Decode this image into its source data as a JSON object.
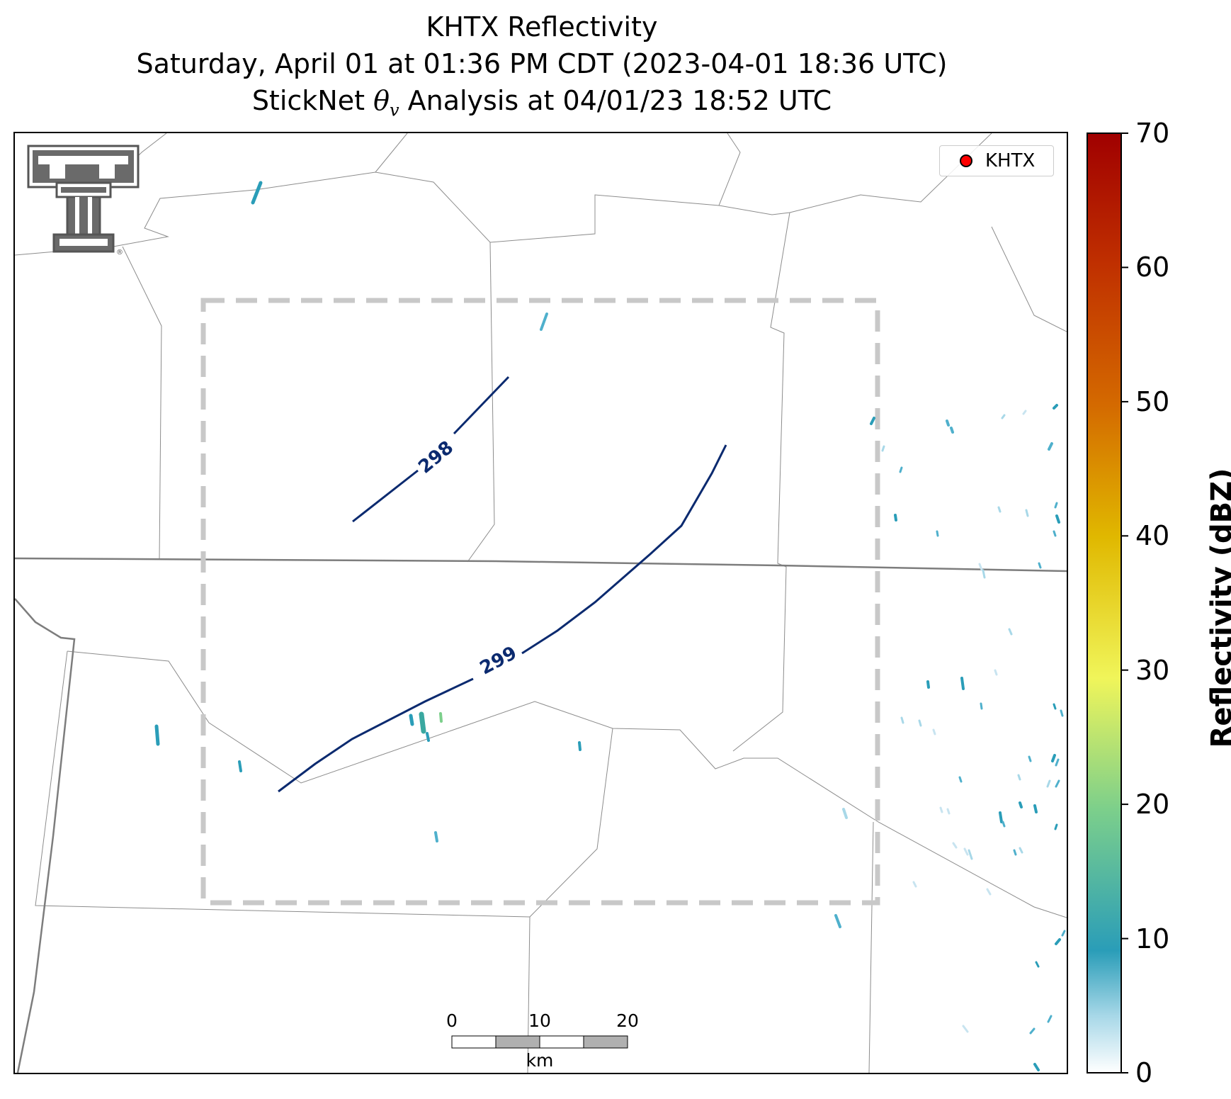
{
  "title": {
    "line1": "KHTX Reflectivity",
    "line2": "Saturday, April 01 at 01:36 PM CDT (2023-04-01 18:36 UTC)",
    "line3_prefix": "StickNet ",
    "line3_symbol": "θ",
    "line3_subscript": "v",
    "line3_suffix": " Analysis at 04/01/23 18:52 UTC"
  },
  "legend": {
    "label": "KHTX",
    "marker_color": "#ff0000"
  },
  "colorbar": {
    "label": "Reflectivity (dBZ)",
    "min": 0,
    "max": 70,
    "ticks": [
      "0",
      "10",
      "20",
      "30",
      "40",
      "50",
      "60",
      "70"
    ],
    "colormap": [
      "#ffffff",
      "#2a9db8",
      "#7ccf8b",
      "#f0f55a",
      "#e0b800",
      "#d46a00",
      "#a00000"
    ]
  },
  "contours": [
    {
      "label": "298",
      "color": "#0b2a6f"
    },
    {
      "label": "299",
      "color": "#0b2a6f"
    }
  ],
  "scale_bar": {
    "ticks": [
      "0",
      "10",
      "20"
    ],
    "unit": "km"
  },
  "analysis_domain": {
    "style": "dashed",
    "color": "#c8c8c8"
  },
  "logo": {
    "name": "Texas Tech Double T",
    "trademark": "®"
  }
}
